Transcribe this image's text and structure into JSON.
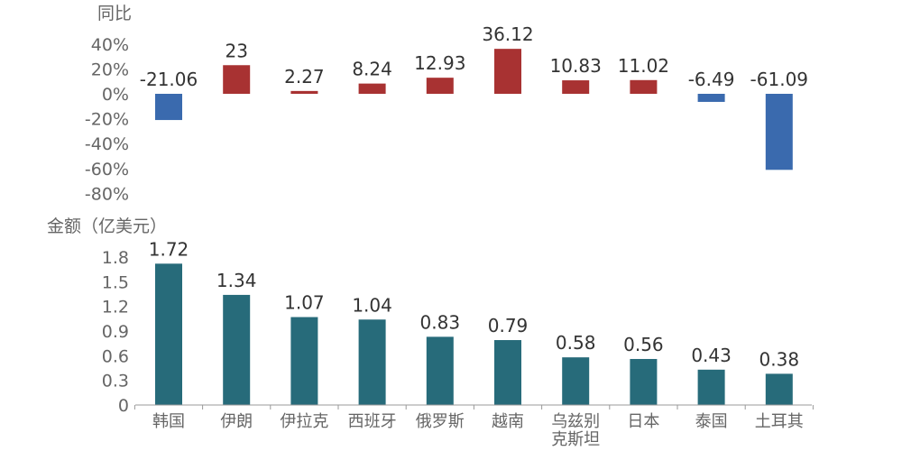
{
  "chart_data": [
    {
      "type": "bar",
      "ylabel": "同比",
      "categories": [
        "韩国",
        "伊朗",
        "伊拉克",
        "西班牙",
        "俄罗斯",
        "越南",
        "乌兹别克斯坦",
        "日本",
        "泰国",
        "土耳其"
      ],
      "values": [
        -21.06,
        23,
        2.27,
        8.24,
        12.93,
        36.12,
        10.83,
        11.02,
        -6.49,
        -61.09
      ],
      "data_labels": [
        "-21.06",
        "23",
        "2.27",
        "8.24",
        "12.93",
        "36.12",
        "10.83",
        "11.02",
        "-6.49",
        "-61.09"
      ],
      "yticks": [
        "40%",
        "20%",
        "0%",
        "-20%",
        "-40%",
        "-60%",
        "-80%"
      ],
      "ytick_values": [
        40,
        20,
        0,
        -20,
        -40,
        -60,
        -80
      ],
      "ylim": [
        -80,
        40
      ],
      "colors": {
        "positive": "#a83232",
        "negative": "#3a6aae"
      },
      "grid": false
    },
    {
      "type": "bar",
      "ylabel": "金额（亿美元）",
      "categories": [
        "韩国",
        "伊朗",
        "伊拉克",
        "西班牙",
        "俄罗斯",
        "越南",
        "乌兹别克斯坦",
        "日本",
        "泰国",
        "土耳其"
      ],
      "category_labels": [
        [
          "韩国"
        ],
        [
          "伊朗"
        ],
        [
          "伊拉克"
        ],
        [
          "西班牙"
        ],
        [
          "俄罗斯"
        ],
        [
          "越南"
        ],
        [
          "乌兹别",
          "克斯坦"
        ],
        [
          "日本"
        ],
        [
          "泰国"
        ],
        [
          "土耳其"
        ]
      ],
      "values": [
        1.72,
        1.34,
        1.07,
        1.04,
        0.83,
        0.79,
        0.58,
        0.56,
        0.43,
        0.38
      ],
      "data_labels": [
        "1.72",
        "1.34",
        "1.07",
        "1.04",
        "0.83",
        "0.79",
        "0.58",
        "0.56",
        "0.43",
        "0.38"
      ],
      "yticks": [
        "1.8",
        "1.5",
        "1.2",
        "0.9",
        "0.6",
        "0.3",
        "0"
      ],
      "ytick_values": [
        1.8,
        1.5,
        1.2,
        0.9,
        0.6,
        0.3,
        0
      ],
      "ylim": [
        0,
        1.8
      ],
      "colors": {
        "bar": "#276b7a",
        "axis": "#999999"
      },
      "grid": false
    }
  ]
}
